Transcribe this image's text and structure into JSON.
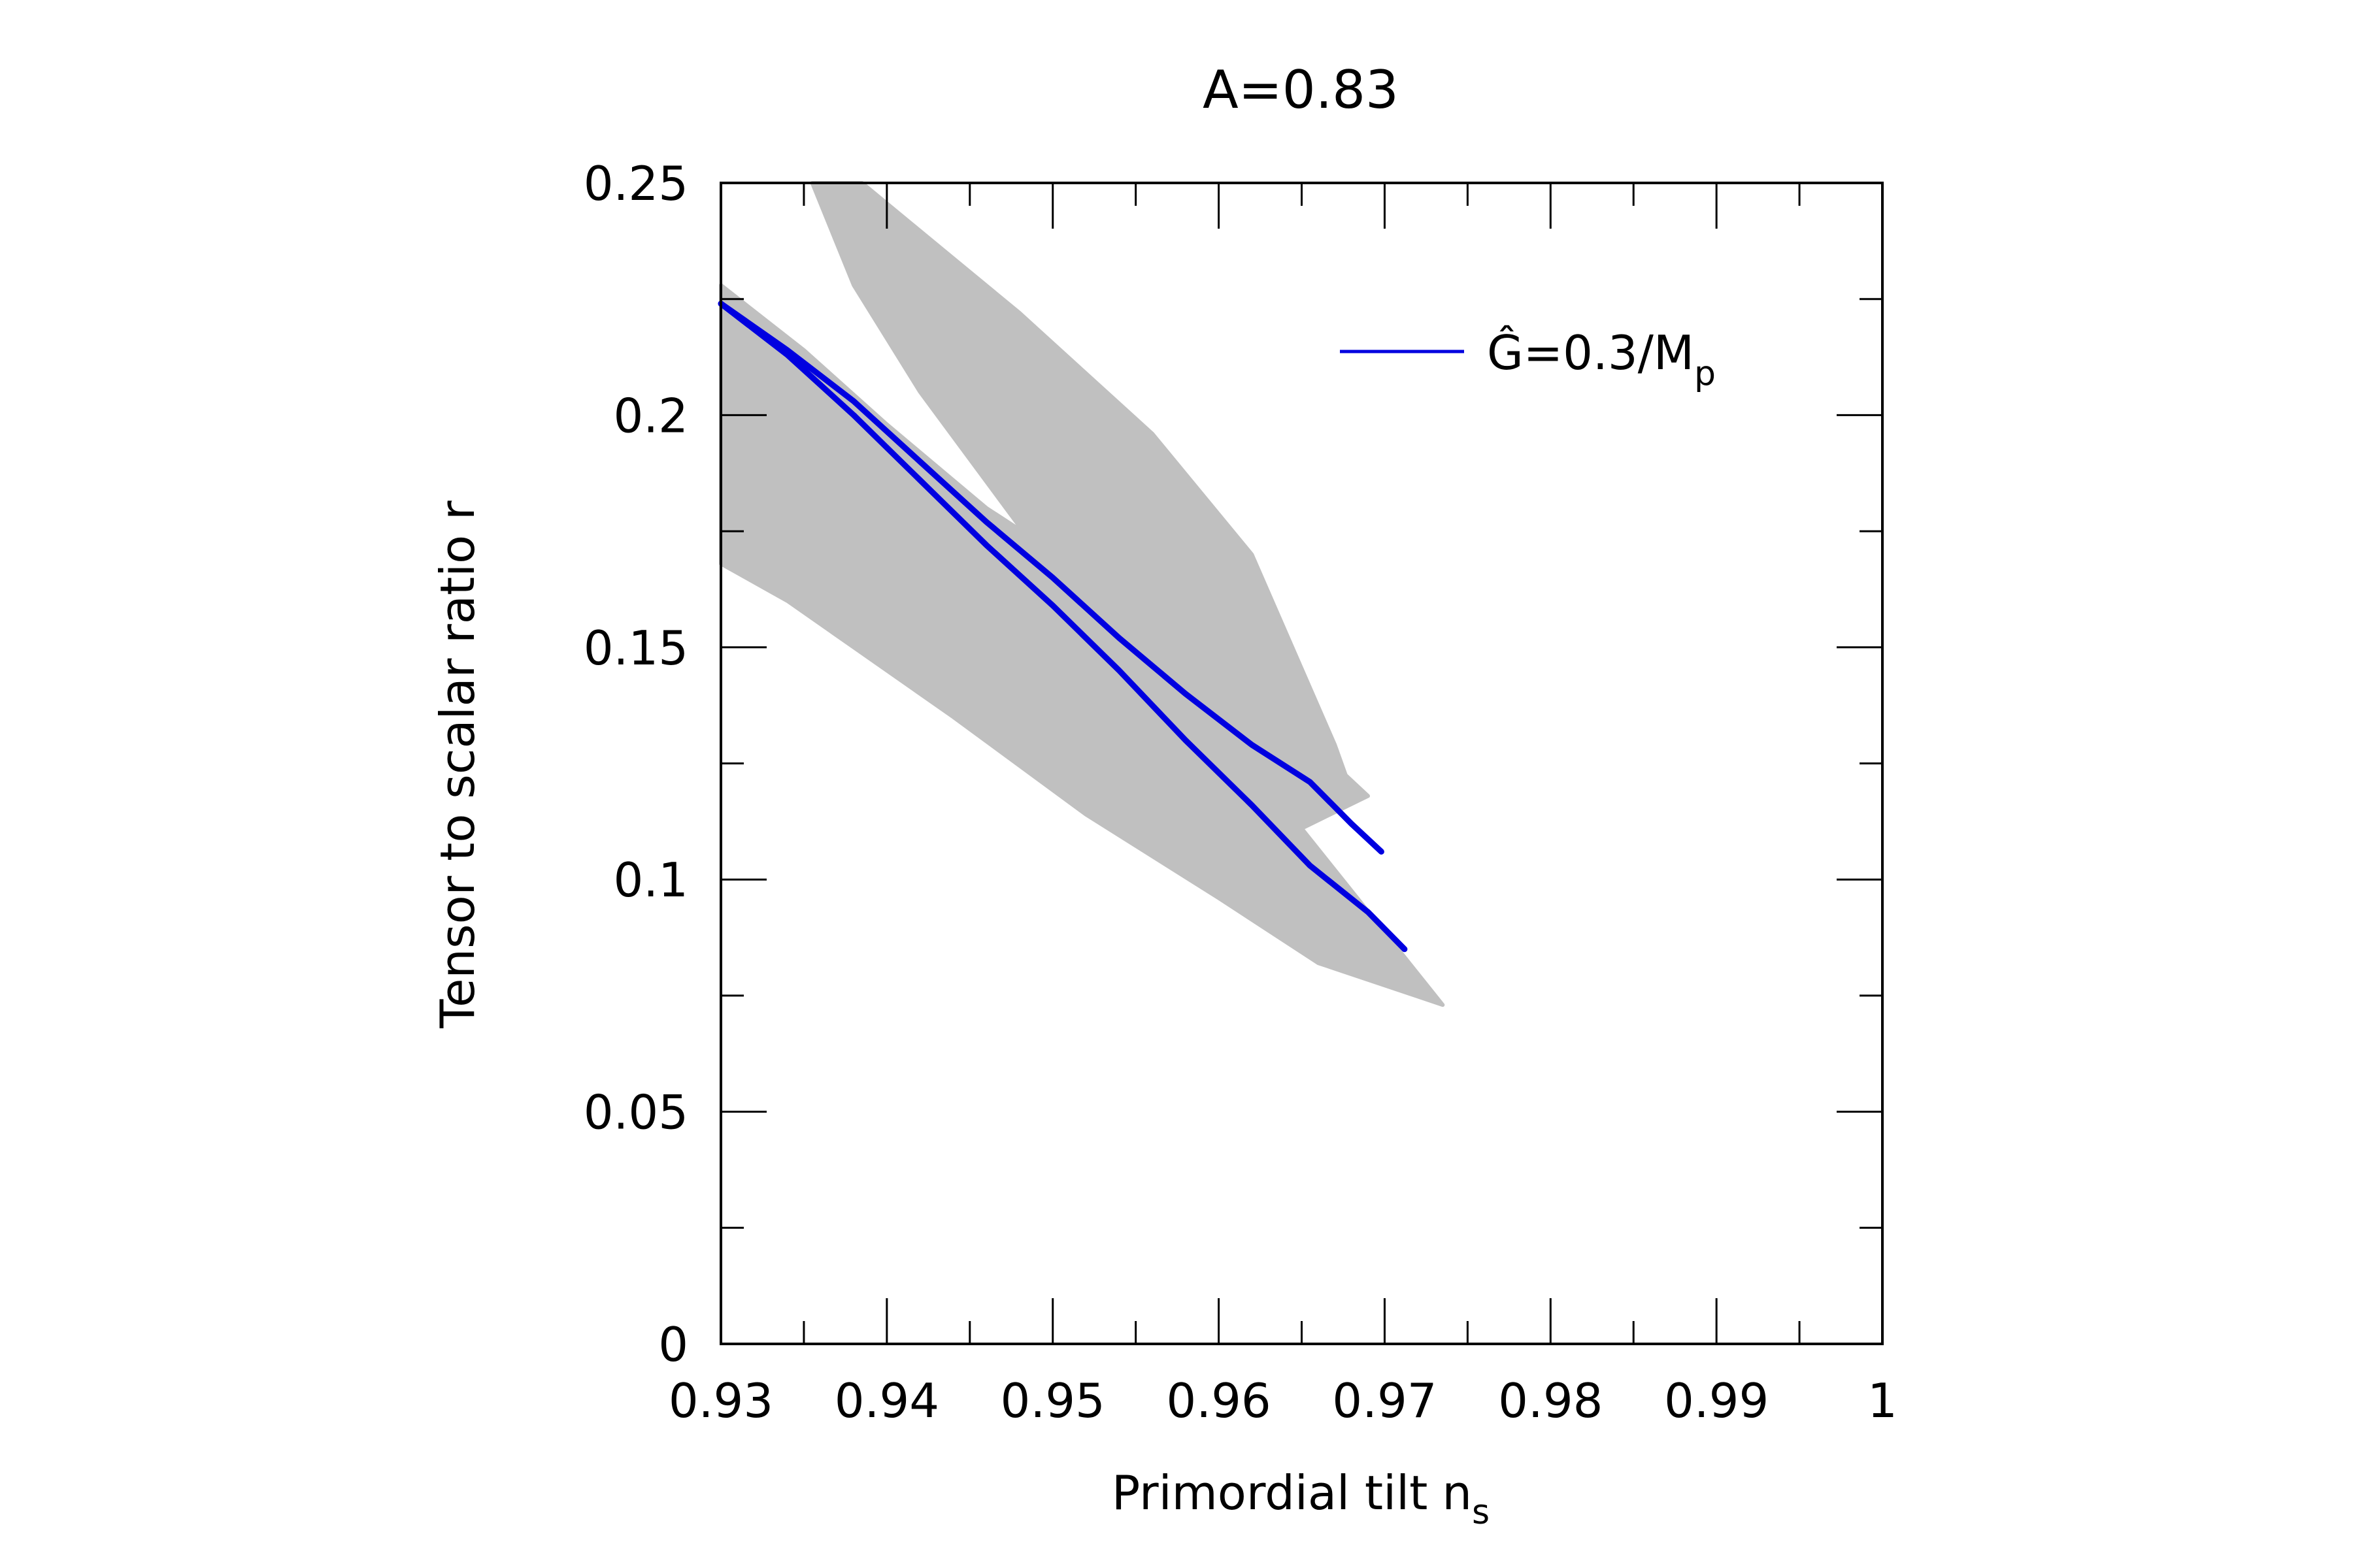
{
  "chart_data": {
    "type": "line",
    "title": "A=0.83",
    "xlabel": "Primordial tilt",
    "xlabel_sub": "s",
    "xlabel_var": "n",
    "ylabel": "Tensor to scalar ratio r",
    "xlim": [
      0.93,
      1.0
    ],
    "ylim": [
      0,
      0.25
    ],
    "x_ticks": [
      0.93,
      0.94,
      0.95,
      0.96,
      0.97,
      0.98,
      0.99,
      1.0
    ],
    "x_tick_labels": [
      "0.93",
      "0.94",
      "0.95",
      "0.96",
      "0.97",
      "0.98",
      "0.99",
      "1"
    ],
    "x_minor_ticks": [
      0.935,
      0.945,
      0.955,
      0.965,
      0.975,
      0.985,
      0.995
    ],
    "y_ticks": [
      0,
      0.05,
      0.1,
      0.15,
      0.2,
      0.25
    ],
    "y_tick_labels": [
      "0",
      "0.05",
      "0.1",
      "0.15",
      "0.2",
      "0.25"
    ],
    "y_minor_ticks": [
      0.025,
      0.075,
      0.125,
      0.175,
      0.225
    ],
    "grid": false,
    "legend": {
      "placement": "top-right",
      "entries": [
        {
          "label_main": "Ĝ=0.3/M",
          "label_sub": "p",
          "series": "G=0.3/Mp",
          "color": "#0000e0"
        }
      ]
    },
    "background_regions": [
      {
        "name": "gray-band-lower",
        "color": "#c0c0c0",
        "polygon": [
          [
            0.93,
            0.228
          ],
          [
            0.935,
            0.214
          ],
          [
            0.94,
            0.198
          ],
          [
            0.946,
            0.18
          ],
          [
            0.952,
            0.166
          ],
          [
            0.958,
            0.152
          ],
          [
            0.964,
            0.135
          ],
          [
            0.966,
            0.128
          ],
          [
            0.969,
            0.118
          ],
          [
            0.965,
            0.111
          ],
          [
            0.9735,
            0.073
          ],
          [
            0.966,
            0.082
          ],
          [
            0.96,
            0.096
          ],
          [
            0.952,
            0.114
          ],
          [
            0.944,
            0.135
          ],
          [
            0.938,
            0.15
          ],
          [
            0.934,
            0.16
          ],
          [
            0.93,
            0.168
          ]
        ]
      },
      {
        "name": "gray-band-upper",
        "color": "#c0c0c0",
        "polygon": [
          [
            0.9355,
            0.25
          ],
          [
            0.9385,
            0.25
          ],
          [
            0.948,
            0.222
          ],
          [
            0.956,
            0.196
          ],
          [
            0.962,
            0.17
          ],
          [
            0.967,
            0.129
          ],
          [
            0.968,
            0.119
          ],
          [
            0.964,
            0.127
          ],
          [
            0.956,
            0.147
          ],
          [
            0.948,
            0.176
          ],
          [
            0.942,
            0.205
          ],
          [
            0.938,
            0.228
          ]
        ]
      }
    ],
    "series": [
      {
        "name": "G=0.3/Mp (lower branch)",
        "color": "#0000e0",
        "x": [
          0.93,
          0.934,
          0.938,
          0.942,
          0.946,
          0.95,
          0.954,
          0.958,
          0.962,
          0.9655,
          0.969,
          0.9712
        ],
        "y": [
          0.224,
          0.213,
          0.2,
          0.186,
          0.172,
          0.159,
          0.145,
          0.13,
          0.116,
          0.103,
          0.093,
          0.085
        ]
      },
      {
        "name": "G=0.3/Mp (upper branch)",
        "color": "#0000e0",
        "x": [
          0.93,
          0.934,
          0.938,
          0.942,
          0.946,
          0.95,
          0.954,
          0.958,
          0.962,
          0.9655,
          0.968,
          0.9698
        ],
        "y": [
          0.224,
          0.214,
          0.203,
          0.19,
          0.177,
          0.165,
          0.152,
          0.14,
          0.129,
          0.121,
          0.112,
          0.106
        ]
      }
    ]
  }
}
